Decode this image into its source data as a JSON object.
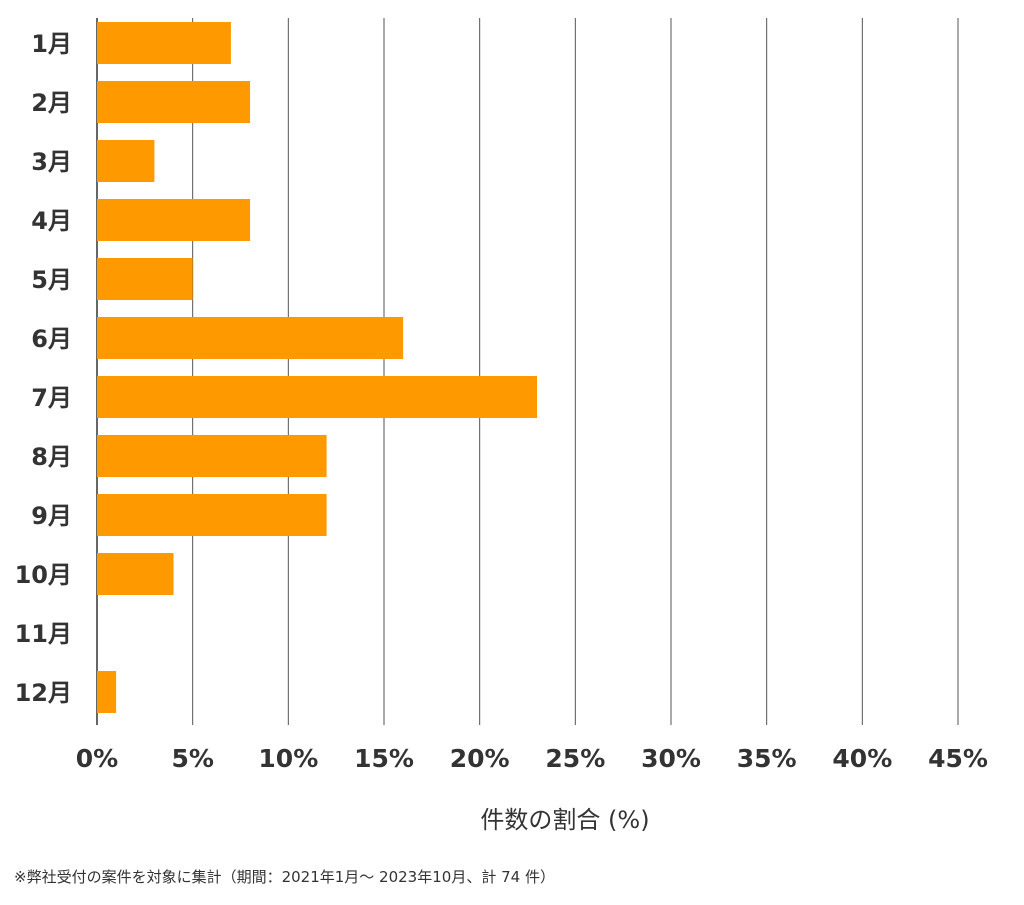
{
  "chart_data": {
    "type": "bar",
    "orientation": "horizontal",
    "categories": [
      "1月",
      "2月",
      "3月",
      "4月",
      "5月",
      "6月",
      "7月",
      "8月",
      "9月",
      "10月",
      "11月",
      "12月"
    ],
    "values": [
      7.0,
      8.0,
      3.0,
      8.0,
      5.0,
      16.0,
      23.0,
      12.0,
      12.0,
      4.0,
      0.0,
      1.0
    ],
    "xlabel": "件数の割合 (%)",
    "ylabel": "",
    "xlim": [
      0,
      45
    ],
    "xticks": [
      "0%",
      "5%",
      "10%",
      "15%",
      "20%",
      "25%",
      "30%",
      "35%",
      "40%",
      "45%"
    ],
    "grid": "vertical",
    "bar_color": "#FF9900"
  },
  "footnote": "※弊社受付の案件を対象に集計（期間：2021年1月～ 2023年10月、計 74 件）"
}
